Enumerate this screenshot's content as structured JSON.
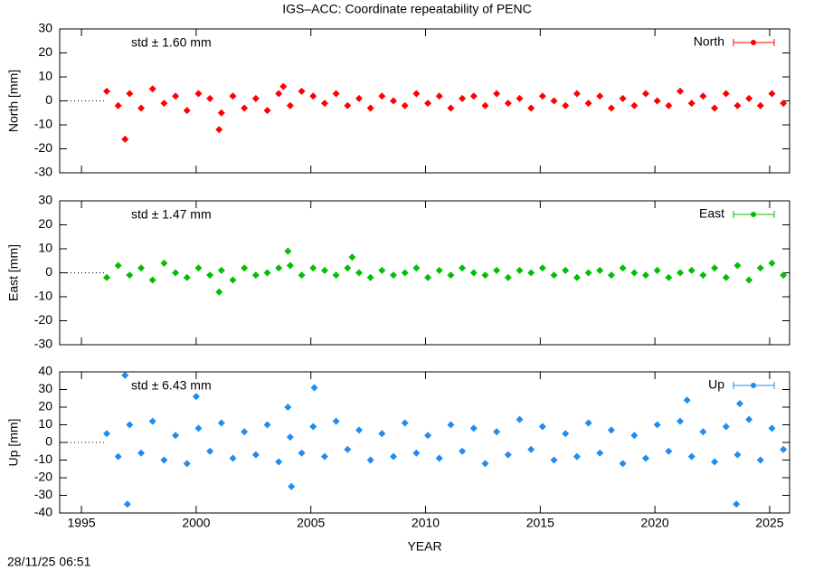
{
  "footer": "28/11/25 06:51",
  "chart_data": [
    {
      "type": "scatter",
      "title": "IGS–ACC: Coordinate repeatability of PENC",
      "ylabel": "North [mm]",
      "annotation": "std ± 1.60 mm",
      "xlim": [
        1994.05,
        2025.87
      ],
      "ylim": [
        -30,
        30
      ],
      "yticks": [
        30,
        20,
        10,
        0,
        -10,
        -20,
        -30
      ],
      "series": [
        {
          "name": "North",
          "color": "#ff0000",
          "x": [
            1996.1,
            1996.6,
            1996.9,
            1997.1,
            1997.6,
            1998.1,
            1998.6,
            1999.1,
            1999.6,
            2000.1,
            2000.6,
            2001.0,
            2001.1,
            2001.6,
            2002.1,
            2002.6,
            2003.1,
            2003.6,
            2003.8,
            2004.1,
            2004.6,
            2005.1,
            2005.6,
            2006.1,
            2006.6,
            2007.1,
            2007.6,
            2008.1,
            2008.6,
            2009.1,
            2009.6,
            2010.1,
            2010.6,
            2011.1,
            2011.6,
            2012.1,
            2012.6,
            2013.1,
            2013.6,
            2014.1,
            2014.6,
            2015.1,
            2015.6,
            2016.1,
            2016.6,
            2017.1,
            2017.6,
            2018.1,
            2018.6,
            2019.1,
            2019.6,
            2020.1,
            2020.6,
            2021.1,
            2021.6,
            2022.1,
            2022.6,
            2023.1,
            2023.6,
            2024.1,
            2024.6,
            2025.1,
            2025.6
          ],
          "values": [
            4,
            -2,
            -16,
            3,
            -3,
            5,
            -1,
            2,
            -4,
            3,
            1,
            -12,
            -5,
            2,
            -3,
            1,
            -4,
            3,
            6,
            -2,
            4,
            2,
            -1,
            3,
            -2,
            1,
            -3,
            2,
            0,
            -2,
            3,
            -1,
            2,
            -3,
            1,
            2,
            -2,
            3,
            -1,
            1,
            -3,
            2,
            0,
            -2,
            3,
            -1,
            2,
            -3,
            1,
            -2,
            3,
            0,
            -2,
            4,
            -1,
            2,
            -3,
            3,
            -2,
            1,
            -2,
            3,
            -1
          ]
        }
      ]
    },
    {
      "type": "scatter",
      "ylabel": "East [mm]",
      "annotation": "std ± 1.47 mm",
      "xlim": [
        1994.05,
        2025.87
      ],
      "ylim": [
        -30,
        30
      ],
      "yticks": [
        30,
        20,
        10,
        0,
        -10,
        -20,
        -30
      ],
      "series": [
        {
          "name": "East",
          "color": "#00c000",
          "x": [
            1996.1,
            1996.6,
            1997.1,
            1997.6,
            1998.1,
            1998.6,
            1999.1,
            1999.6,
            2000.1,
            2000.6,
            2001.0,
            2001.1,
            2001.6,
            2002.1,
            2002.6,
            2003.1,
            2003.6,
            2004.0,
            2004.1,
            2004.6,
            2005.1,
            2005.6,
            2006.1,
            2006.6,
            2006.8,
            2007.1,
            2007.6,
            2008.1,
            2008.6,
            2009.1,
            2009.6,
            2010.1,
            2010.6,
            2011.1,
            2011.6,
            2012.1,
            2012.6,
            2013.1,
            2013.6,
            2014.1,
            2014.6,
            2015.1,
            2015.6,
            2016.1,
            2016.6,
            2017.1,
            2017.6,
            2018.1,
            2018.6,
            2019.1,
            2019.6,
            2020.1,
            2020.6,
            2021.1,
            2021.6,
            2022.1,
            2022.6,
            2023.1,
            2023.6,
            2024.1,
            2024.6,
            2025.1,
            2025.6
          ],
          "values": [
            -2,
            3,
            -1,
            2,
            -3,
            4,
            0,
            -2,
            2,
            -1,
            -8,
            1,
            -3,
            2,
            -1,
            0,
            2,
            9,
            3,
            -1,
            2,
            1,
            -1,
            2,
            6.5,
            0,
            -2,
            1,
            -1,
            0,
            2,
            -2,
            1,
            -1,
            2,
            0,
            -1,
            1,
            -2,
            1,
            0,
            2,
            -1,
            1,
            -2,
            0,
            1,
            -1,
            2,
            0,
            -1,
            1,
            -2,
            0,
            1,
            -1,
            2,
            -2,
            3,
            -3,
            2,
            4,
            -1
          ]
        }
      ]
    },
    {
      "type": "scatter",
      "ylabel": "Up [mm]",
      "xlabel": "YEAR",
      "annotation": "std ± 6.43 mm",
      "xlim": [
        1994.05,
        2025.87
      ],
      "ylim": [
        -40,
        40
      ],
      "yticks": [
        40,
        30,
        20,
        10,
        0,
        -10,
        -20,
        -30,
        -40
      ],
      "xticks": [
        1995,
        2000,
        2005,
        2010,
        2015,
        2020,
        2025
      ],
      "series": [
        {
          "name": "Up",
          "color": "#1e8cf0",
          "x": [
            1996.1,
            1996.6,
            1996.9,
            1997.0,
            1997.1,
            1997.6,
            1998.1,
            1998.6,
            1999.1,
            1999.6,
            2000.0,
            2000.1,
            2000.6,
            2001.1,
            2001.6,
            2002.1,
            2002.6,
            2003.1,
            2003.6,
            2004.0,
            2004.1,
            2004.15,
            2004.6,
            2005.1,
            2005.15,
            2005.6,
            2006.1,
            2006.6,
            2007.1,
            2007.6,
            2008.1,
            2008.6,
            2009.1,
            2009.6,
            2010.1,
            2010.6,
            2011.1,
            2011.6,
            2012.1,
            2012.6,
            2013.1,
            2013.6,
            2014.1,
            2014.6,
            2015.1,
            2015.6,
            2016.1,
            2016.6,
            2017.1,
            2017.6,
            2018.1,
            2018.6,
            2019.1,
            2019.6,
            2020.1,
            2020.6,
            2021.1,
            2021.4,
            2021.6,
            2022.1,
            2022.6,
            2023.1,
            2023.55,
            2023.6,
            2023.7,
            2024.1,
            2024.6,
            2025.1,
            2025.6
          ],
          "values": [
            5,
            -8,
            38,
            -35,
            10,
            -6,
            12,
            -10,
            4,
            -12,
            26,
            8,
            -5,
            11,
            -9,
            6,
            -7,
            10,
            -11,
            20,
            3,
            -25,
            -6,
            9,
            31,
            -8,
            12,
            -4,
            7,
            -10,
            5,
            -8,
            11,
            -6,
            4,
            -9,
            10,
            -5,
            8,
            -12,
            6,
            -7,
            13,
            -4,
            9,
            -10,
            5,
            -8,
            11,
            -6,
            7,
            -12,
            4,
            -9,
            10,
            -5,
            12,
            24,
            -8,
            6,
            -11,
            9,
            -35,
            -7,
            22,
            13,
            -10,
            8,
            -4
          ]
        }
      ]
    }
  ]
}
